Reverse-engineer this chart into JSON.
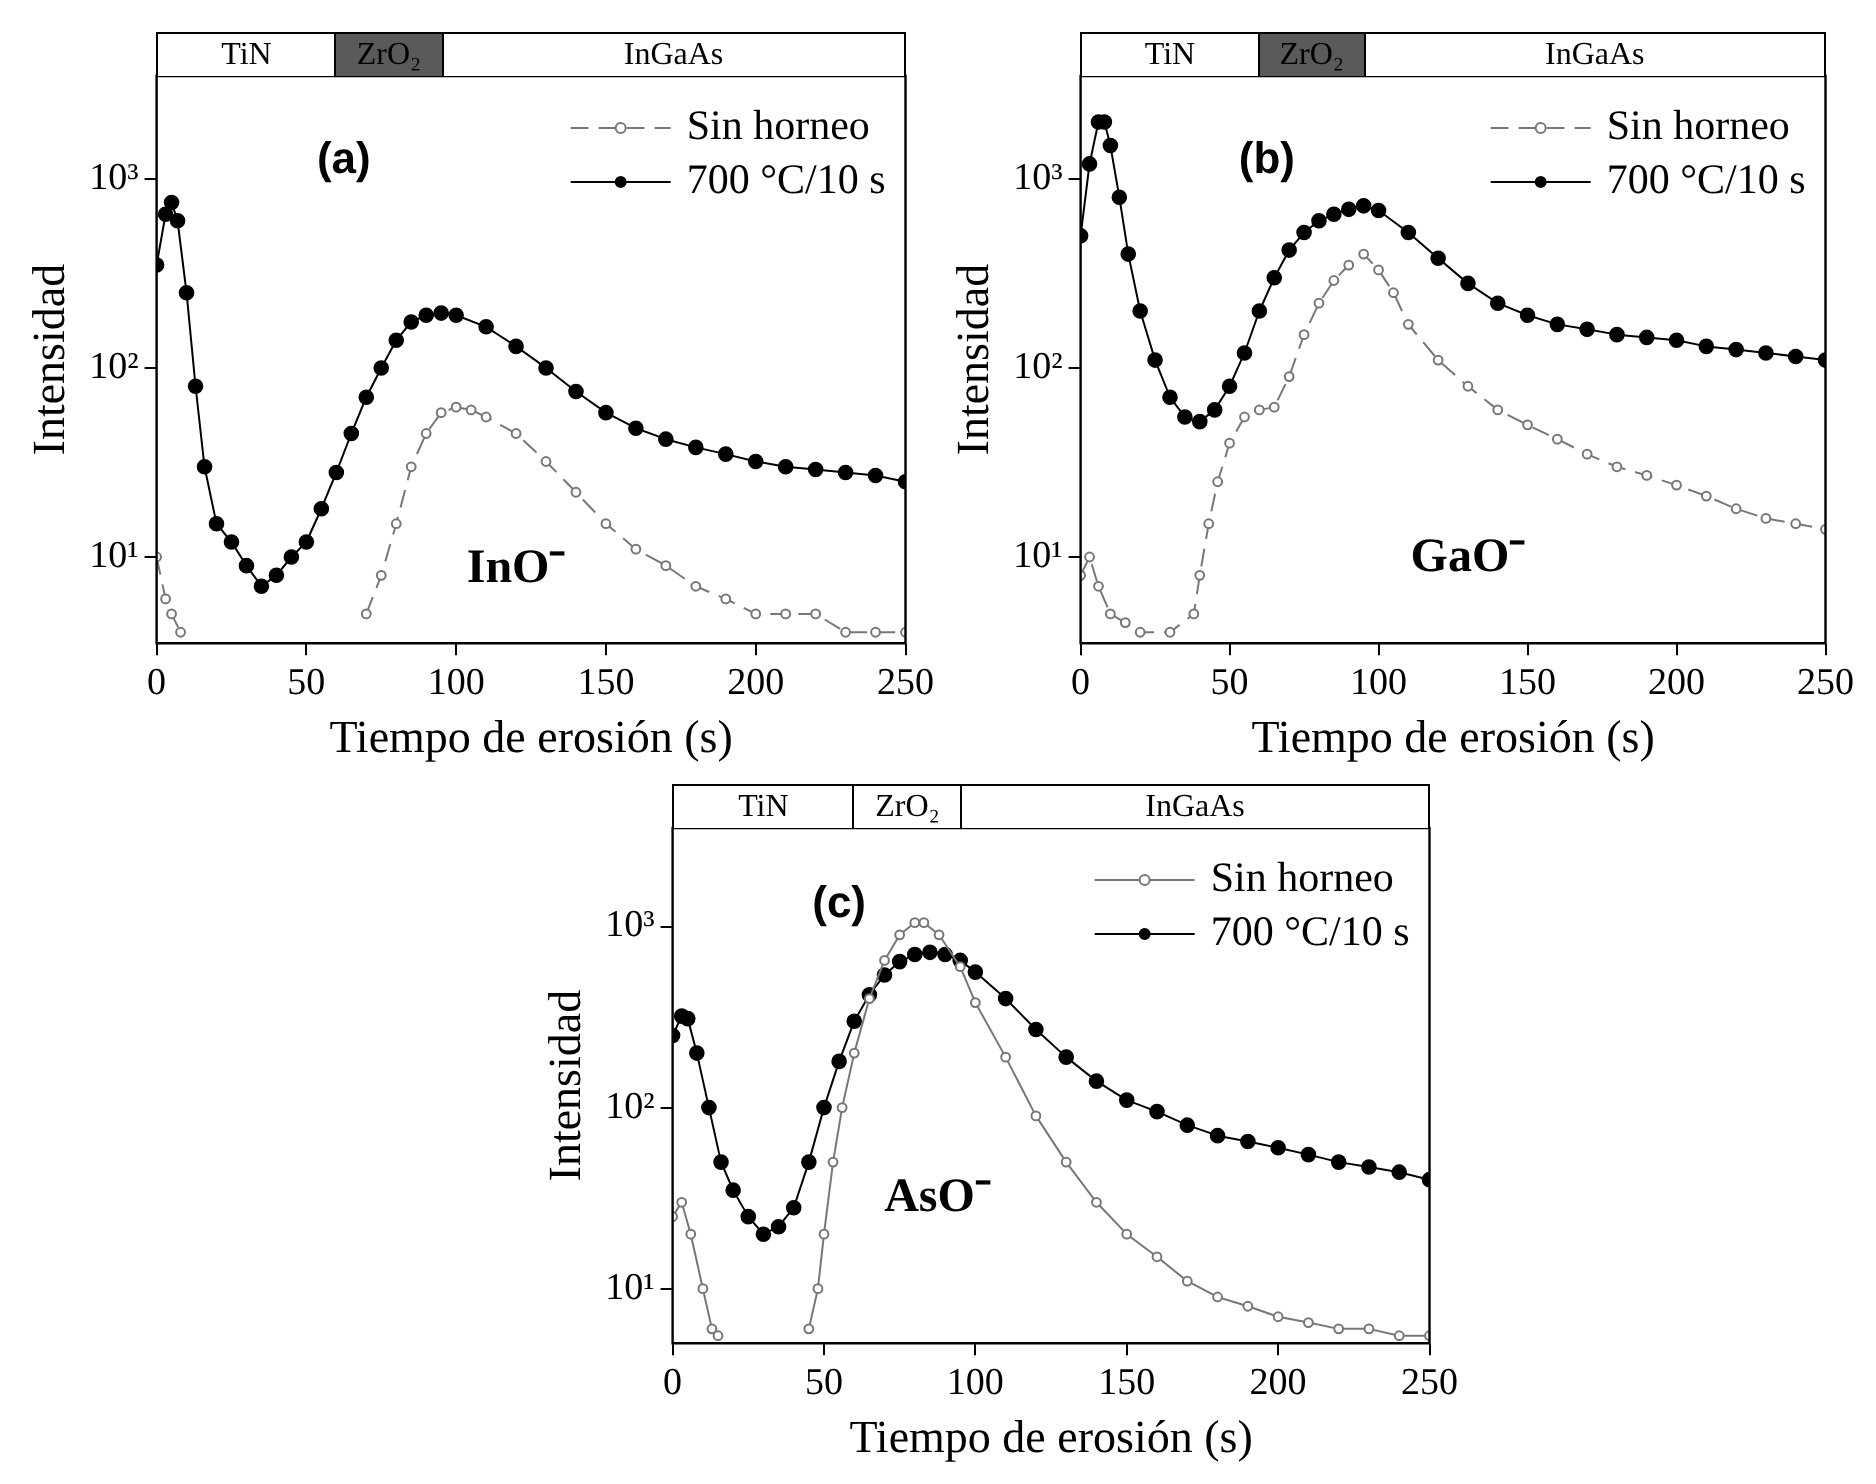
{
  "chart_data": [
    {
      "type": "line",
      "xlabel": "Tiempo de erosión (s)",
      "ylabel": "Intensidad",
      "xlim": [
        0,
        250
      ],
      "ylim": [
        3.5,
        3500
      ],
      "xticks": [
        0,
        50,
        100,
        150,
        200,
        250
      ],
      "yticks": [
        {
          "value": 10,
          "label": "10¹"
        },
        {
          "value": 100,
          "label": "10²"
        },
        {
          "value": 1000,
          "label": "10³"
        }
      ],
      "log": true,
      "grid": false,
      "legend": "top right",
      "annotations": [
        "(a)",
        "InO⁻",
        "TiN",
        "ZrO₂",
        "InGaAs"
      ],
      "series": [
        {
          "name": "Sin horneo",
          "color": "#777777",
          "marker": "circle",
          "line_style": "dashed",
          "x": [
            0,
            3,
            5,
            8,
            10,
            70,
            75,
            80,
            85,
            90,
            95,
            100,
            105,
            110,
            120,
            130,
            140,
            150,
            160,
            170,
            180,
            190,
            200,
            210,
            220,
            230,
            240,
            250
          ],
          "values": [
            10,
            6,
            5,
            4,
            null,
            5,
            8,
            15,
            30,
            45,
            58,
            62,
            60,
            55,
            45,
            32,
            22,
            15,
            11,
            9,
            7,
            6,
            5,
            5,
            5,
            4,
            4,
            4
          ]
        },
        {
          "name": "700 °C/10 s",
          "color": "#000000",
          "marker": "circle",
          "line_style": "solid",
          "x": [
            0,
            3,
            5,
            7,
            10,
            13,
            16,
            20,
            25,
            30,
            35,
            40,
            45,
            50,
            55,
            60,
            65,
            70,
            75,
            80,
            85,
            90,
            95,
            100,
            110,
            120,
            130,
            140,
            150,
            160,
            170,
            180,
            190,
            200,
            210,
            220,
            230,
            240,
            250
          ],
          "values": [
            350,
            650,
            750,
            600,
            250,
            80,
            30,
            15,
            12,
            9,
            7,
            8,
            10,
            12,
            18,
            28,
            45,
            70,
            100,
            140,
            175,
            190,
            195,
            190,
            165,
            130,
            100,
            75,
            58,
            48,
            42,
            38,
            35,
            32,
            30,
            29,
            28,
            27,
            25
          ]
        }
      ]
    },
    {
      "type": "line",
      "xlabel": "Tiempo de erosión (s)",
      "ylabel": "Intensidad",
      "xlim": [
        0,
        250
      ],
      "ylim": [
        3.5,
        3500
      ],
      "xticks": [
        0,
        50,
        100,
        150,
        200,
        250
      ],
      "yticks": [
        {
          "value": 10,
          "label": "10¹"
        },
        {
          "value": 100,
          "label": "10²"
        },
        {
          "value": 1000,
          "label": "10³"
        }
      ],
      "log": true,
      "grid": false,
      "legend": "top right",
      "annotations": [
        "(b)",
        "GaO⁻",
        "TiN",
        "ZrO₂",
        "InGaAs"
      ],
      "series": [
        {
          "name": "Sin horneo",
          "color": "#777777",
          "marker": "circle",
          "line_style": "dashed",
          "x": [
            0,
            3,
            6,
            10,
            15,
            20,
            30,
            38,
            40,
            43,
            46,
            50,
            55,
            60,
            65,
            70,
            75,
            80,
            85,
            90,
            95,
            100,
            105,
            110,
            120,
            130,
            140,
            150,
            160,
            170,
            180,
            190,
            200,
            210,
            220,
            230,
            240,
            250
          ],
          "values": [
            8,
            10,
            7,
            5,
            4.5,
            4,
            4,
            5,
            8,
            15,
            25,
            40,
            55,
            60,
            62,
            90,
            150,
            220,
            290,
            350,
            400,
            330,
            250,
            170,
            110,
            80,
            60,
            50,
            42,
            35,
            30,
            27,
            24,
            21,
            18,
            16,
            15,
            14
          ]
        },
        {
          "name": "700 °C/10 s",
          "color": "#000000",
          "marker": "circle",
          "line_style": "solid",
          "x": [
            0,
            3,
            6,
            8,
            10,
            13,
            16,
            20,
            25,
            30,
            35,
            40,
            45,
            50,
            55,
            60,
            65,
            70,
            75,
            80,
            85,
            90,
            95,
            100,
            110,
            120,
            130,
            140,
            150,
            160,
            170,
            180,
            190,
            200,
            210,
            220,
            230,
            240,
            250
          ],
          "values": [
            500,
            1200,
            2000,
            2000,
            1500,
            800,
            400,
            200,
            110,
            70,
            55,
            52,
            60,
            80,
            120,
            200,
            300,
            420,
            520,
            600,
            650,
            690,
            720,
            680,
            520,
            380,
            280,
            220,
            190,
            170,
            160,
            150,
            145,
            140,
            130,
            125,
            120,
            115,
            110
          ]
        }
      ]
    },
    {
      "type": "line",
      "xlabel": "Tiempo de erosión (s)",
      "ylabel": "Intensidad",
      "xlim": [
        0,
        250
      ],
      "ylim": [
        5,
        3500
      ],
      "xticks": [
        0,
        50,
        100,
        150,
        200,
        250
      ],
      "yticks": [
        {
          "value": 10,
          "label": "10¹"
        },
        {
          "value": 100,
          "label": "10²"
        },
        {
          "value": 1000,
          "label": "10³"
        }
      ],
      "log": true,
      "grid": false,
      "legend": "top right",
      "annotations": [
        "(c)",
        "AsO⁻",
        "TiN",
        "ZrO₂",
        "InGaAs"
      ],
      "series": [
        {
          "name": "Sin horneo",
          "color": "#777777",
          "marker": "circle",
          "line_style": "solid",
          "x": [
            0,
            3,
            6,
            10,
            13,
            15,
            30,
            45,
            48,
            50,
            53,
            56,
            60,
            65,
            70,
            75,
            80,
            83,
            88,
            95,
            100,
            110,
            120,
            130,
            140,
            150,
            160,
            170,
            180,
            190,
            200,
            210,
            220,
            230,
            240,
            250
          ],
          "values": [
            25,
            30,
            20,
            10,
            6,
            5.5,
            null,
            6,
            10,
            20,
            50,
            100,
            200,
            400,
            650,
            900,
            1050,
            1050,
            900,
            600,
            380,
            190,
            90,
            50,
            30,
            20,
            15,
            11,
            9,
            8,
            7,
            6.5,
            6,
            6,
            5.5,
            5.5
          ]
        },
        {
          "name": "700 °C/10 s",
          "color": "#000000",
          "marker": "circle",
          "line_style": "solid",
          "x": [
            0,
            3,
            5,
            8,
            12,
            16,
            20,
            25,
            30,
            35,
            40,
            45,
            50,
            55,
            60,
            65,
            70,
            75,
            80,
            85,
            90,
            95,
            100,
            110,
            120,
            130,
            140,
            150,
            160,
            170,
            180,
            190,
            200,
            210,
            220,
            230,
            240,
            250
          ],
          "values": [
            250,
            320,
            310,
            200,
            100,
            50,
            35,
            25,
            20,
            22,
            28,
            50,
            100,
            180,
            300,
            420,
            540,
            640,
            700,
            720,
            700,
            650,
            560,
            400,
            270,
            190,
            140,
            110,
            95,
            80,
            70,
            65,
            60,
            55,
            50,
            47,
            44,
            40
          ]
        }
      ]
    }
  ]
}
